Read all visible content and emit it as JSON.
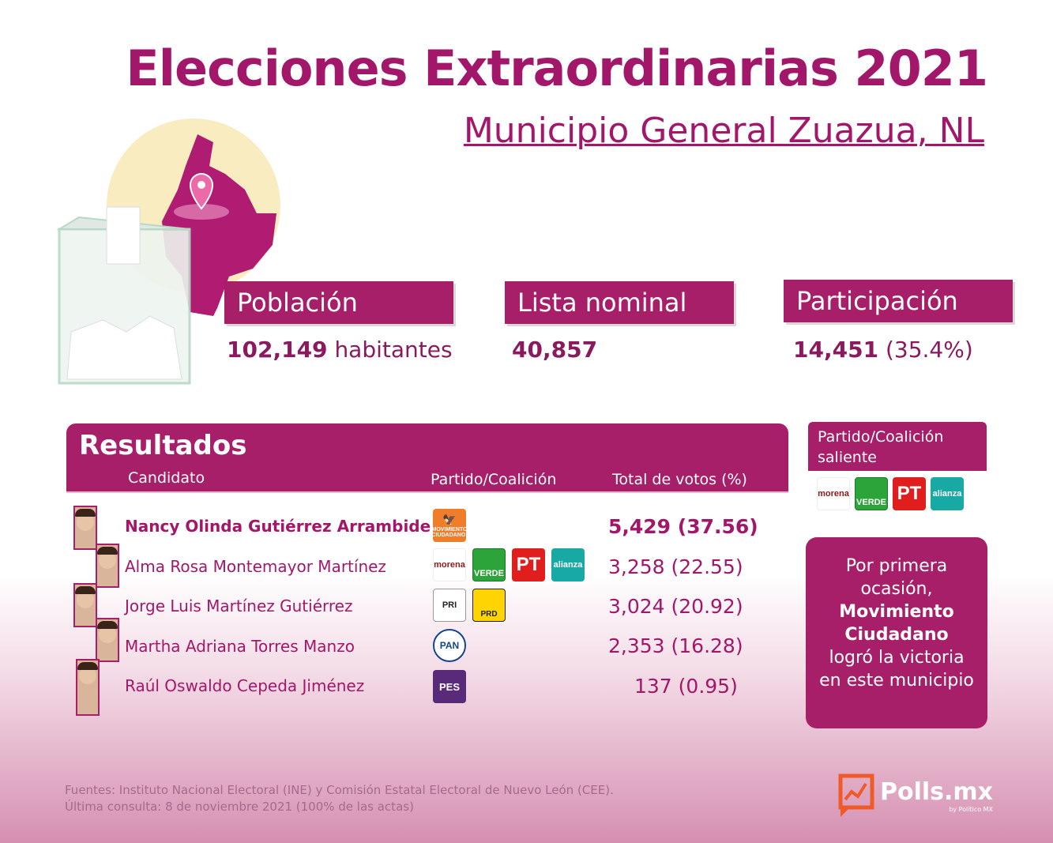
{
  "title": "Elecciones Extraordinarias 2021",
  "subtitle": "Municipio General Zuazua, NL",
  "stats": {
    "poblacion": {
      "label": "Población",
      "value": "102,149",
      "suffix": "habitantes"
    },
    "lista": {
      "label": "Lista nominal",
      "value": "40,857"
    },
    "participacion": {
      "label": "Participación",
      "value": "14,451",
      "suffix": "(35.4%)"
    }
  },
  "results": {
    "title": "Resultados",
    "col_candidate": "Candidato",
    "col_party": "Partido/Coalición",
    "col_votes": "Total de votos (%)",
    "rows": [
      {
        "name": "Nancy Olinda Gutiérrez Arrambide",
        "votes": "5,429 (37.56)",
        "parties": [
          "MOVIMIENTO CIUDADANO"
        ]
      },
      {
        "name": "Alma Rosa Montemayor Martínez",
        "votes": "3,258 (22.55)",
        "parties": [
          "morena",
          "VERDE",
          "PT",
          "alianza"
        ]
      },
      {
        "name": "Jorge Luis Martínez Gutiérrez",
        "votes": "3,024 (20.92)",
        "parties": [
          "PRI",
          "PRD"
        ]
      },
      {
        "name": "Martha Adriana Torres Manzo",
        "votes": "2,353 (16.28)",
        "parties": [
          "PAN"
        ]
      },
      {
        "name": "Raúl Oswaldo Cepeda Jiménez",
        "votes": "137 (0.95)",
        "parties": [
          "PES"
        ]
      }
    ]
  },
  "saliente": {
    "label": "Partido/Coalición saliente",
    "parties": [
      "morena",
      "VERDE",
      "PT",
      "alianza"
    ]
  },
  "note": {
    "line1": "Por primera ocasión,",
    "bold": "Movimiento Ciudadano",
    "line2": "logró la victoria en este municipio"
  },
  "sources": {
    "line1": "Fuentes: Instituto Nacional Electoral (INE) y Comisión Estatal Electoral de Nuevo León (CEE).",
    "line2": "Última consulta: 8 de noviembre 2021 (100% de las actas)"
  },
  "brand": {
    "name": "Polls.mx",
    "by": "by Político MX"
  },
  "colors": {
    "primary": "#a71f69",
    "text": "#a3176a"
  }
}
